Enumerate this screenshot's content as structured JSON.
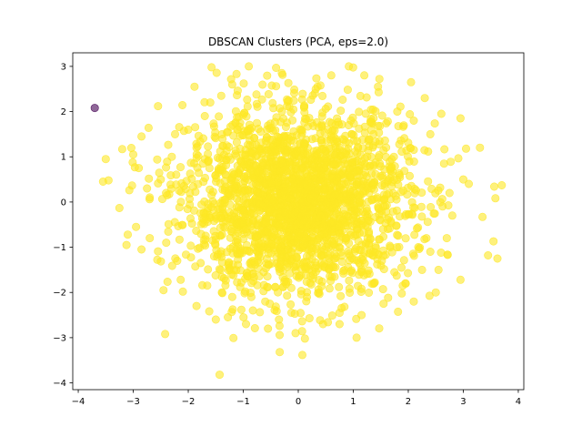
{
  "chart_data": {
    "type": "scatter",
    "title": "DBSCAN Clusters (PCA, eps=2.0)",
    "xlabel": "",
    "ylabel": "",
    "xlim": [
      -4.1,
      4.1
    ],
    "ylim": [
      -4.15,
      3.3
    ],
    "xticks": [
      -4,
      -3,
      -2,
      -1,
      0,
      1,
      2,
      3,
      4
    ],
    "xtick_labels": [
      "−4",
      "−3",
      "−2",
      "−1",
      "0",
      "1",
      "2",
      "3",
      "4"
    ],
    "yticks": [
      -4,
      -3,
      -2,
      -1,
      0,
      1,
      2,
      3
    ],
    "ytick_labels": [
      "−4",
      "−3",
      "−2",
      "−1",
      "0",
      "1",
      "2",
      "3"
    ],
    "grid": false,
    "legend": "none",
    "series": [
      {
        "color": "#440154",
        "alpha": 0.6,
        "points": [
          [
            -3.7,
            2.08
          ]
        ]
      },
      {
        "color": "#fde725",
        "alpha": 0.6,
        "distribution": {
          "kind": "gaussian",
          "center": [
            0.0,
            0.0
          ],
          "std": [
            1.0,
            1.0
          ],
          "count": 2400
        },
        "points": [
          [
            -1.43,
            -3.82
          ],
          [
            0.12,
            -3.02
          ],
          [
            1.06,
            -3.0
          ],
          [
            -0.05,
            -2.9
          ],
          [
            -2.42,
            -2.92
          ],
          [
            -1.28,
            -2.55
          ],
          [
            -0.55,
            -2.8
          ],
          [
            0.45,
            -2.7
          ],
          [
            0.75,
            -2.7
          ],
          [
            -1.5,
            -2.6
          ],
          [
            -0.95,
            -2.7
          ],
          [
            -3.1,
            -0.72
          ],
          [
            -2.7,
            -0.8
          ],
          [
            -3.2,
            1.17
          ],
          [
            -3.0,
            1.05
          ],
          [
            -3.45,
            0.48
          ],
          [
            -3.55,
            0.45
          ],
          [
            -3.5,
            0.95
          ],
          [
            -2.85,
            1.45
          ],
          [
            -2.55,
            2.12
          ],
          [
            -1.6,
            2.2
          ],
          [
            -1.4,
            2.35
          ],
          [
            -1.2,
            2.6
          ],
          [
            -0.9,
            3.0
          ],
          [
            -0.3,
            2.85
          ],
          [
            0.6,
            2.8
          ],
          [
            0.35,
            2.55
          ],
          [
            0.92,
            3.0
          ],
          [
            1.2,
            2.8
          ],
          [
            1.45,
            2.55
          ],
          [
            2.05,
            2.65
          ],
          [
            2.3,
            2.3
          ],
          [
            2.6,
            1.95
          ],
          [
            2.95,
            1.85
          ],
          [
            3.05,
            1.18
          ],
          [
            3.0,
            0.5
          ],
          [
            3.1,
            0.4
          ],
          [
            3.7,
            0.37
          ],
          [
            3.35,
            -0.33
          ],
          [
            3.55,
            -0.87
          ],
          [
            3.45,
            -1.18
          ],
          [
            3.62,
            -1.25
          ],
          [
            2.95,
            -1.72
          ],
          [
            2.55,
            -1.5
          ],
          [
            2.5,
            -2.0
          ],
          [
            2.1,
            -2.2
          ],
          [
            1.55,
            -2.25
          ],
          [
            1.15,
            -2.5
          ],
          [
            0.75,
            -2.45
          ],
          [
            -0.35,
            -2.6
          ],
          [
            -1.85,
            -2.3
          ],
          [
            -2.45,
            -1.95
          ],
          [
            -2.85,
            -1.05
          ],
          [
            -2.95,
            -0.55
          ],
          [
            -2.7,
            0.1
          ],
          [
            -2.75,
            0.3
          ],
          [
            -2.9,
            0.75
          ],
          [
            -2.0,
            1.6
          ],
          [
            -1.7,
            1.9
          ],
          [
            2.4,
            1.5
          ],
          [
            2.65,
            0.85
          ],
          [
            2.75,
            0.2
          ],
          [
            2.8,
            -0.3
          ],
          [
            2.7,
            -0.8
          ],
          [
            2.4,
            -1.1
          ],
          [
            2.25,
            -1.5
          ],
          [
            1.9,
            -1.85
          ],
          [
            -0.6,
            -2.2
          ],
          [
            -1.2,
            -2.1
          ],
          [
            -2.2,
            -1.3
          ],
          [
            -2.4,
            -0.9
          ],
          [
            -2.5,
            0.5
          ],
          [
            -2.3,
            1.0
          ],
          [
            -1.85,
            1.2
          ],
          [
            1.8,
            2.0
          ],
          [
            2.1,
            1.8
          ]
        ]
      }
    ]
  }
}
